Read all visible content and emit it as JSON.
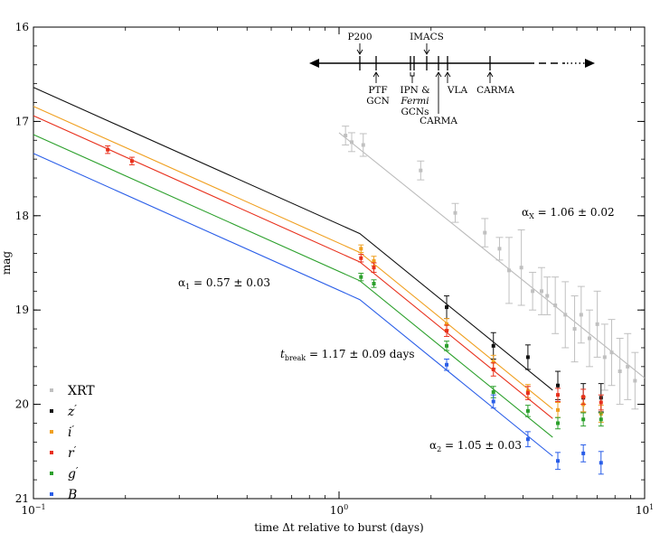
{
  "chart_data": {
    "type": "scatter",
    "title": "",
    "xlabel": "time Δt relative to burst (days)",
    "ylabel": "mag",
    "xscale": "log",
    "xlim": [
      0.1,
      10
    ],
    "ylim": [
      21,
      16
    ],
    "x_ticks": [
      {
        "value": 0.1,
        "base": "10",
        "exp": "−1"
      },
      {
        "value": 1,
        "base": "10",
        "exp": "0"
      },
      {
        "value": 10,
        "base": "10",
        "exp": "1"
      }
    ],
    "y_ticks": [
      {
        "value": 16,
        "label": "16"
      },
      {
        "value": 17,
        "label": "17"
      },
      {
        "value": 18,
        "label": "18"
      },
      {
        "value": 19,
        "label": "19"
      },
      {
        "value": 20,
        "label": "20"
      },
      {
        "value": 21,
        "label": "21"
      }
    ],
    "legend": {
      "position": "bottom-left",
      "entries": [
        {
          "label": "XRT",
          "color": "#c0c0c0",
          "italic": false,
          "prime": false
        },
        {
          "label": "z",
          "color": "#111111",
          "italic": true,
          "prime": true
        },
        {
          "label": "i",
          "color": "#f0a020",
          "italic": true,
          "prime": true
        },
        {
          "label": "r",
          "color": "#e8301c",
          "italic": true,
          "prime": true
        },
        {
          "label": "g",
          "color": "#2ca02c",
          "italic": true,
          "prime": true
        },
        {
          "label": "B",
          "color": "#2a5ee8",
          "italic": true,
          "prime": false
        }
      ]
    },
    "series": [
      {
        "name": "z'",
        "color": "#111111",
        "points": [
          {
            "x": 2.25,
            "y": 18.97,
            "err": 0.12
          },
          {
            "x": 3.2,
            "y": 19.38,
            "err": 0.14
          },
          {
            "x": 4.15,
            "y": 19.5,
            "err": 0.13
          },
          {
            "x": 5.2,
            "y": 19.8,
            "err": 0.15
          },
          {
            "x": 6.3,
            "y": 19.93,
            "err": 0.15
          },
          {
            "x": 7.2,
            "y": 19.93,
            "err": 0.15
          }
        ]
      },
      {
        "name": "i'",
        "color": "#f0a020",
        "points": [
          {
            "x": 1.18,
            "y": 18.35,
            "err": 0.04
          },
          {
            "x": 1.3,
            "y": 18.48,
            "err": 0.05
          },
          {
            "x": 2.25,
            "y": 19.15,
            "err": 0.06
          },
          {
            "x": 3.2,
            "y": 19.55,
            "err": 0.07
          },
          {
            "x": 4.15,
            "y": 19.86,
            "err": 0.07
          },
          {
            "x": 5.2,
            "y": 20.06,
            "err": 0.08
          },
          {
            "x": 6.3,
            "y": 20.0,
            "err": 0.08
          },
          {
            "x": 7.2,
            "y": 20.1,
            "err": 0.09
          }
        ]
      },
      {
        "name": "r'",
        "color": "#e8301c",
        "points": [
          {
            "x": 0.175,
            "y": 17.3,
            "err": 0.04
          },
          {
            "x": 0.21,
            "y": 17.42,
            "err": 0.04
          },
          {
            "x": 1.18,
            "y": 18.45,
            "err": 0.04
          },
          {
            "x": 1.3,
            "y": 18.55,
            "err": 0.05
          },
          {
            "x": 2.25,
            "y": 19.22,
            "err": 0.06
          },
          {
            "x": 3.2,
            "y": 19.63,
            "err": 0.07
          },
          {
            "x": 4.15,
            "y": 19.88,
            "err": 0.07
          },
          {
            "x": 5.2,
            "y": 19.9,
            "err": 0.07
          },
          {
            "x": 6.3,
            "y": 19.92,
            "err": 0.08
          },
          {
            "x": 7.2,
            "y": 19.98,
            "err": 0.08
          }
        ]
      },
      {
        "name": "g'",
        "color": "#2ca02c",
        "points": [
          {
            "x": 1.18,
            "y": 18.65,
            "err": 0.04
          },
          {
            "x": 1.3,
            "y": 18.72,
            "err": 0.04
          },
          {
            "x": 2.25,
            "y": 19.38,
            "err": 0.05
          },
          {
            "x": 3.2,
            "y": 19.87,
            "err": 0.06
          },
          {
            "x": 4.15,
            "y": 20.07,
            "err": 0.06
          },
          {
            "x": 5.2,
            "y": 20.2,
            "err": 0.06
          },
          {
            "x": 6.3,
            "y": 20.16,
            "err": 0.07
          },
          {
            "x": 7.2,
            "y": 20.16,
            "err": 0.07
          }
        ]
      },
      {
        "name": "B",
        "color": "#2a5ee8",
        "points": [
          {
            "x": 2.25,
            "y": 19.58,
            "err": 0.06
          },
          {
            "x": 3.2,
            "y": 19.97,
            "err": 0.07
          },
          {
            "x": 4.15,
            "y": 20.37,
            "err": 0.08
          },
          {
            "x": 5.2,
            "y": 20.6,
            "err": 0.09
          },
          {
            "x": 6.3,
            "y": 20.52,
            "err": 0.09
          },
          {
            "x": 7.2,
            "y": 20.62,
            "err": 0.12
          }
        ]
      },
      {
        "name": "XRT",
        "color": "#c0c0c0",
        "points": [
          {
            "x": 1.05,
            "y": 17.15,
            "err": 0.1
          },
          {
            "x": 1.1,
            "y": 17.22,
            "err": 0.1
          },
          {
            "x": 1.2,
            "y": 17.25,
            "err": 0.12
          },
          {
            "x": 1.85,
            "y": 17.52,
            "err": 0.1
          },
          {
            "x": 2.4,
            "y": 17.97,
            "err": 0.1
          },
          {
            "x": 3.0,
            "y": 18.18,
            "err": 0.15
          },
          {
            "x": 3.35,
            "y": 18.35,
            "err": 0.12
          },
          {
            "x": 3.6,
            "y": 18.58,
            "err": 0.35
          },
          {
            "x": 3.95,
            "y": 18.55,
            "err": 0.4
          },
          {
            "x": 4.3,
            "y": 18.8,
            "err": 0.2
          },
          {
            "x": 4.6,
            "y": 18.8,
            "err": 0.25
          },
          {
            "x": 4.8,
            "y": 18.85,
            "err": 0.2
          },
          {
            "x": 5.1,
            "y": 18.95,
            "err": 0.3
          },
          {
            "x": 5.5,
            "y": 19.05,
            "err": 0.35
          },
          {
            "x": 5.9,
            "y": 19.2,
            "err": 0.35
          },
          {
            "x": 6.2,
            "y": 19.05,
            "err": 0.3
          },
          {
            "x": 6.6,
            "y": 19.3,
            "err": 0.3
          },
          {
            "x": 7.0,
            "y": 19.15,
            "err": 0.35
          },
          {
            "x": 7.4,
            "y": 19.5,
            "err": 0.35
          },
          {
            "x": 7.8,
            "y": 19.45,
            "err": 0.35
          },
          {
            "x": 8.3,
            "y": 19.65,
            "err": 0.35
          },
          {
            "x": 8.8,
            "y": 19.6,
            "err": 0.35
          },
          {
            "x": 9.3,
            "y": 19.75,
            "err": 0.3
          }
        ]
      }
    ],
    "model_lines": [
      {
        "name": "z'",
        "color": "#111111",
        "points": [
          [
            0.1,
            16.64
          ],
          [
            1.17,
            18.19
          ],
          [
            5.0,
            19.85
          ]
        ]
      },
      {
        "name": "i'",
        "color": "#f0a020",
        "points": [
          [
            0.1,
            16.84
          ],
          [
            1.17,
            18.39
          ],
          [
            5.0,
            20.05
          ]
        ]
      },
      {
        "name": "r'",
        "color": "#e8301c",
        "points": [
          [
            0.1,
            16.94
          ],
          [
            1.17,
            18.49
          ],
          [
            5.0,
            20.15
          ]
        ]
      },
      {
        "name": "g'",
        "color": "#2ca02c",
        "points": [
          [
            0.1,
            17.14
          ],
          [
            1.17,
            18.69
          ],
          [
            5.0,
            20.35
          ]
        ]
      },
      {
        "name": "B",
        "color": "#2a5ee8",
        "points": [
          [
            0.1,
            17.34
          ],
          [
            1.17,
            18.89
          ],
          [
            5.0,
            20.55
          ]
        ]
      },
      {
        "name": "XRT",
        "color": "#bbbbbb",
        "points": [
          [
            1.0,
            17.12
          ],
          [
            10.0,
            19.72
          ]
        ]
      }
    ],
    "annotations": {
      "alpha1": {
        "sym": "α",
        "sub": "1",
        "text": " = 0.57 ± 0.03"
      },
      "alpha2": {
        "sym": "α",
        "sub": "2",
        "text": " = 1.05 ± 0.03"
      },
      "alphaX": {
        "sym": "α",
        "sub": "X",
        "text": " = 1.06 ± 0.02"
      },
      "tbreak": {
        "sym": "t",
        "sub": "break",
        "text": " = 1.17 ± 0.09 days"
      }
    },
    "timeline": {
      "above": [
        {
          "label": "P200"
        },
        {
          "label": "IMACS"
        }
      ],
      "below": [
        {
          "lines": [
            "PTF",
            "GCN"
          ]
        },
        {
          "lines": [
            "IPN &",
            "Fermi",
            "GCNs"
          ]
        },
        {
          "lines": [
            "CARMA"
          ]
        },
        {
          "lines": [
            "VLA"
          ]
        },
        {
          "lines": [
            "CARMA"
          ]
        }
      ]
    }
  }
}
